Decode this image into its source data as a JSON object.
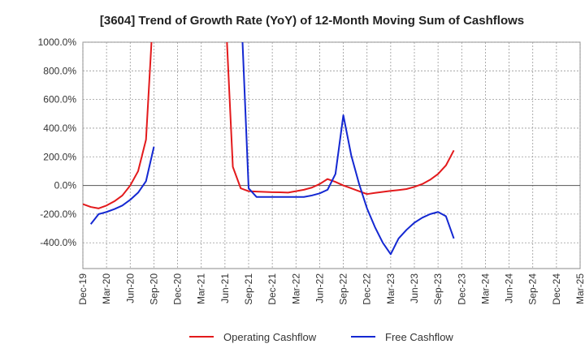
{
  "chart_data": {
    "type": "line",
    "title": "[3604]  Trend of Growth Rate (YoY) of 12-Month Moving Sum of Cashflows",
    "xlabel": "",
    "ylabel": "",
    "ylim": [
      -580,
      1000
    ],
    "y_ticks": [
      {
        "value": 1000,
        "label": "1000.0%"
      },
      {
        "value": 800,
        "label": "800.0%"
      },
      {
        "value": 600,
        "label": "600.0%"
      },
      {
        "value": 400,
        "label": "400.0%"
      },
      {
        "value": 200,
        "label": "200.0%"
      },
      {
        "value": 0,
        "label": "0.0%"
      },
      {
        "value": -200,
        "label": "-200.0%"
      },
      {
        "value": -400,
        "label": "-400.0%"
      }
    ],
    "x_ticks": [
      "Dec-19",
      "Mar-20",
      "Jun-20",
      "Sep-20",
      "Dec-20",
      "Mar-21",
      "Jun-21",
      "Sep-21",
      "Dec-21",
      "Mar-22",
      "Jun-22",
      "Sep-22",
      "Dec-22",
      "Mar-23",
      "Jun-23",
      "Sep-23",
      "Dec-23",
      "Mar-24",
      "Jun-24",
      "Sep-24",
      "Dec-24",
      "Mar-25"
    ],
    "grid": true,
    "legend_position": "bottom",
    "series": [
      {
        "name": "Operating Cashflow",
        "color": "#e31a1c",
        "points": [
          [
            0,
            -130
          ],
          [
            1,
            -150
          ],
          [
            2,
            -160
          ],
          [
            3,
            -140
          ],
          [
            4,
            -110
          ],
          [
            5,
            -70
          ],
          [
            6,
            0
          ],
          [
            7,
            100
          ],
          [
            8,
            320
          ],
          [
            9,
            1300
          ],
          [
            null,
            null
          ],
          [
            18,
            1300
          ],
          [
            19,
            130
          ],
          [
            20,
            -20
          ],
          [
            21,
            -40
          ],
          [
            22,
            -43
          ],
          [
            23,
            -45
          ],
          [
            24,
            -47
          ],
          [
            25,
            -48
          ],
          [
            26,
            -50
          ],
          [
            27,
            -40
          ],
          [
            28,
            -30
          ],
          [
            29,
            -15
          ],
          [
            30,
            10
          ],
          [
            31,
            45
          ],
          [
            32,
            25
          ],
          [
            33,
            0
          ],
          [
            34,
            -20
          ],
          [
            35,
            -40
          ],
          [
            36,
            -60
          ],
          [
            37,
            -52
          ],
          [
            38,
            -45
          ],
          [
            39,
            -38
          ],
          [
            40,
            -32
          ],
          [
            41,
            -25
          ],
          [
            42,
            -10
          ],
          [
            43,
            10
          ],
          [
            44,
            40
          ],
          [
            45,
            80
          ],
          [
            46,
            140
          ],
          [
            47,
            245
          ]
        ]
      },
      {
        "name": "Free Cashflow",
        "color": "#1428d2",
        "points": [
          [
            1,
            -270
          ],
          [
            2,
            -200
          ],
          [
            3,
            -185
          ],
          [
            4,
            -165
          ],
          [
            5,
            -140
          ],
          [
            6,
            -100
          ],
          [
            7,
            -50
          ],
          [
            8,
            30
          ],
          [
            9,
            270
          ],
          [
            null,
            null
          ],
          [
            20,
            1300
          ],
          [
            21,
            -20
          ],
          [
            22,
            -80
          ],
          [
            23,
            -80
          ],
          [
            24,
            -80
          ],
          [
            25,
            -80
          ],
          [
            26,
            -80
          ],
          [
            27,
            -80
          ],
          [
            28,
            -80
          ],
          [
            29,
            -70
          ],
          [
            30,
            -55
          ],
          [
            31,
            -30
          ],
          [
            32,
            80
          ],
          [
            33,
            490
          ],
          [
            34,
            210
          ],
          [
            35,
            10
          ],
          [
            36,
            -160
          ],
          [
            37,
            -290
          ],
          [
            38,
            -400
          ],
          [
            39,
            -480
          ],
          [
            40,
            -370
          ],
          [
            41,
            -310
          ],
          [
            42,
            -260
          ],
          [
            43,
            -225
          ],
          [
            44,
            -200
          ],
          [
            45,
            -185
          ],
          [
            46,
            -215
          ],
          [
            47,
            -370
          ]
        ]
      }
    ]
  }
}
